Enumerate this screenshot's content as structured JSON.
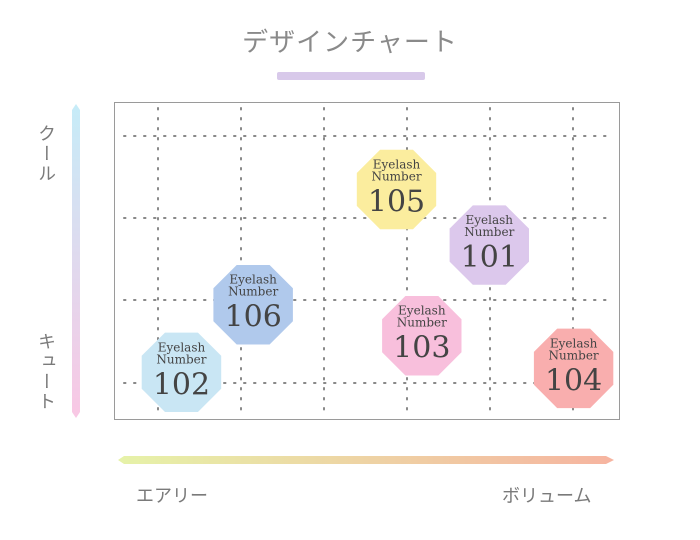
{
  "chart_data": {
    "type": "scatter",
    "title": "デザインチャート",
    "x_axis": {
      "left_label": "エアリー",
      "right_label": "ボリューム",
      "range": [
        0,
        6
      ],
      "gradient": [
        "#e6f2a8",
        "#f6b4a0"
      ]
    },
    "y_axis": {
      "top_label": "クール",
      "bottom_label": "キュート",
      "range": [
        0,
        4
      ],
      "gradient": [
        "#c6ecf8",
        "#f9c7e4"
      ]
    },
    "grid": true,
    "points": [
      {
        "label_top": "Eyelash",
        "label_mid": "Number",
        "number": "105",
        "x": 3.35,
        "y": 2.9,
        "color": "#fbed9e"
      },
      {
        "label_top": "Eyelash",
        "label_mid": "Number",
        "number": "101",
        "x": 4.45,
        "y": 2.2,
        "color": "#dcc8ec"
      },
      {
        "label_top": "Eyelash",
        "label_mid": "Number",
        "number": "106",
        "x": 1.65,
        "y": 1.45,
        "color": "#b0c9ec"
      },
      {
        "label_top": "Eyelash",
        "label_mid": "Number",
        "number": "103",
        "x": 3.65,
        "y": 1.06,
        "color": "#f8bfdc"
      },
      {
        "label_top": "Eyelash",
        "label_mid": "Number",
        "number": "102",
        "x": 0.8,
        "y": 0.6,
        "color": "#c9e6f4"
      },
      {
        "label_top": "Eyelash",
        "label_mid": "Number",
        "number": "104",
        "x": 5.45,
        "y": 0.65,
        "color": "#f9aeae"
      }
    ]
  }
}
